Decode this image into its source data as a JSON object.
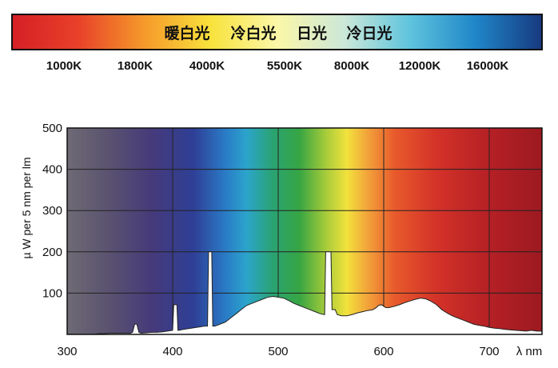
{
  "color_temp_bar": {
    "labels": [
      "暖白光",
      "冷白光",
      "日光",
      "冷日光"
    ],
    "ticks": [
      "1000K",
      "1800K",
      "4000K",
      "5500K",
      "8000K",
      "12000K",
      "16000K"
    ],
    "colors": [
      "#d61f25",
      "#e8412a",
      "#f59a2a",
      "#f8e23c",
      "#fbf7a8",
      "#cde8d8",
      "#5fc4dd",
      "#1f86c8",
      "#17397f"
    ]
  },
  "spectrum_chart": {
    "colors": {
      "grid": "#222222",
      "curve_fill": "#ffffff",
      "curve_stroke": "#222222",
      "frame": "#111111"
    },
    "background_stops": [
      {
        "nm": 300,
        "color": "#6e6a74"
      },
      {
        "nm": 340,
        "color": "#5a5270"
      },
      {
        "nm": 380,
        "color": "#463a7a"
      },
      {
        "nm": 420,
        "color": "#2e3f96"
      },
      {
        "nm": 450,
        "color": "#2a7bc6"
      },
      {
        "nm": 470,
        "color": "#2ba4cc"
      },
      {
        "nm": 495,
        "color": "#2aa372"
      },
      {
        "nm": 520,
        "color": "#36a543"
      },
      {
        "nm": 545,
        "color": "#a6cb3a"
      },
      {
        "nm": 565,
        "color": "#f2e23c"
      },
      {
        "nm": 585,
        "color": "#f2a23a"
      },
      {
        "nm": 610,
        "color": "#e85a2c"
      },
      {
        "nm": 650,
        "color": "#d33228"
      },
      {
        "nm": 700,
        "color": "#b52025"
      },
      {
        "nm": 750,
        "color": "#9c1a20"
      }
    ]
  },
  "chart_data": {
    "type": "area",
    "title": "",
    "xlabel": "λ nm",
    "ylabel": "µ W per 5 nm per lm",
    "xlim": [
      300,
      750
    ],
    "ylim": [
      0,
      500
    ],
    "xticks": [
      300,
      400,
      500,
      600,
      700
    ],
    "yticks": [
      100,
      200,
      300,
      400,
      500
    ],
    "grid": true,
    "series": [
      {
        "x": [
          300,
          325,
          330,
          335,
          340,
          345,
          350,
          355,
          360,
          362,
          364,
          366,
          368,
          370,
          375,
          380,
          385,
          390,
          395,
          400,
          401,
          402,
          403,
          404,
          405,
          406,
          410,
          415,
          420,
          425,
          430,
          433,
          434,
          435,
          437,
          438,
          440,
          445,
          450,
          455,
          460,
          465,
          470,
          475,
          480,
          485,
          490,
          495,
          500,
          505,
          510,
          515,
          520,
          525,
          530,
          535,
          540,
          544,
          545,
          546,
          547,
          550,
          551,
          552,
          553,
          554,
          556,
          560,
          565,
          570,
          575,
          580,
          585,
          590,
          593,
          595,
          598,
          600,
          602,
          605,
          610,
          615,
          620,
          625,
          630,
          635,
          640,
          645,
          650,
          655,
          660,
          665,
          670,
          675,
          680,
          685,
          690,
          695,
          700,
          705,
          710,
          715,
          720,
          725,
          730,
          735,
          740,
          745,
          750
        ],
        "y": [
          0,
          0,
          2,
          2,
          3,
          3,
          3,
          3,
          3,
          5,
          25,
          25,
          5,
          3,
          4,
          5,
          5,
          6,
          8,
          10,
          72,
          72,
          72,
          72,
          10,
          10,
          12,
          14,
          16,
          18,
          20,
          20,
          200,
          200,
          200,
          20,
          20,
          25,
          30,
          40,
          50,
          60,
          70,
          75,
          80,
          85,
          90,
          92,
          90,
          88,
          82,
          75,
          70,
          65,
          60,
          55,
          50,
          48,
          200,
          200,
          200,
          200,
          60,
          60,
          60,
          60,
          48,
          45,
          45,
          48,
          52,
          55,
          58,
          60,
          65,
          70,
          72,
          68,
          65,
          65,
          68,
          72,
          77,
          81,
          85,
          88,
          86,
          80,
          72,
          60,
          52,
          45,
          40,
          35,
          30,
          25,
          22,
          20,
          17,
          15,
          14,
          12,
          11,
          10,
          9,
          8,
          10,
          8,
          8
        ]
      }
    ]
  }
}
